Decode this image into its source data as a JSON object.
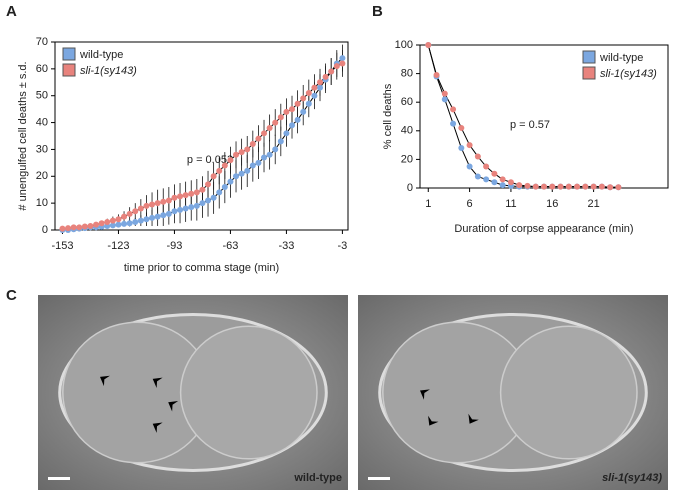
{
  "panels": {
    "letters": [
      "A",
      "B",
      "C"
    ]
  },
  "chart_data": [
    {
      "type": "line",
      "x_label": "time prior to comma stage (min)",
      "y_label": "# unengulfed cell deaths ± s.d.",
      "annotation": "p = 0.053",
      "legend": "upper left",
      "xlim": [
        -157,
        0
      ],
      "ylim": [
        0,
        70
      ],
      "xticks": [
        -153,
        -123,
        -93,
        -63,
        -33,
        -3
      ],
      "yticks": [
        0,
        10,
        20,
        30,
        40,
        50,
        60,
        70
      ],
      "x": [
        -153,
        -150,
        -147,
        -144,
        -141,
        -138,
        -135,
        -132,
        -129,
        -126,
        -123,
        -120,
        -117,
        -114,
        -111,
        -108,
        -105,
        -102,
        -99,
        -96,
        -93,
        -90,
        -87,
        -84,
        -81,
        -78,
        -75,
        -72,
        -69,
        -66,
        -63,
        -60,
        -57,
        -54,
        -51,
        -48,
        -45,
        -42,
        -39,
        -36,
        -33,
        -30,
        -27,
        -24,
        -21,
        -18,
        -15,
        -12,
        -9,
        -6,
        -3
      ],
      "series": [
        {
          "name": "wild-type",
          "color": "#7ba7e0",
          "values": [
            0,
            0,
            0.3,
            0.5,
            0.7,
            1,
            1,
            1.2,
            1.5,
            1.7,
            2,
            2.3,
            2.5,
            3,
            3.5,
            4,
            4.5,
            5,
            5.5,
            6,
            7,
            7.5,
            8,
            8.5,
            9,
            10,
            11,
            12,
            14,
            16,
            18,
            20,
            21,
            22,
            24,
            25,
            27,
            28,
            30,
            33,
            36,
            39,
            41,
            44,
            47,
            50,
            53,
            56,
            59,
            62,
            64
          ],
          "errors": [
            0.3,
            0.3,
            0.4,
            0.5,
            0.5,
            0.6,
            0.6,
            0.7,
            0.8,
            0.9,
            1,
            1,
            1.2,
            1.5,
            2,
            2.5,
            3,
            3.5,
            4,
            4,
            4.5,
            5,
            5,
            5,
            5.5,
            5.5,
            6,
            6,
            6,
            6,
            6,
            6,
            6,
            6,
            6,
            6,
            5.5,
            5.5,
            5.5,
            5.5,
            5,
            5,
            5,
            5,
            5,
            5,
            5,
            5,
            5,
            5,
            5
          ]
        },
        {
          "name": "sli-1(sy143)",
          "color": "#e8837d",
          "values": [
            0.5,
            0.7,
            1,
            1,
            1.3,
            1.5,
            2,
            2.5,
            3,
            3.5,
            4,
            5,
            6,
            7,
            8,
            9,
            9.5,
            10,
            10.5,
            11,
            12,
            12.5,
            13,
            13.5,
            14,
            15,
            17,
            20,
            22,
            24,
            26,
            28,
            29,
            30,
            32,
            34,
            36,
            38,
            40,
            42,
            44,
            45,
            47,
            49,
            51,
            53,
            55,
            57,
            59,
            61,
            62
          ],
          "errors": [
            0.4,
            0.5,
            0.6,
            0.6,
            0.7,
            0.8,
            0.9,
            1,
            1.2,
            1.5,
            1.8,
            2,
            2.5,
            3,
            3.5,
            4,
            4.5,
            5,
            5,
            5,
            5,
            5,
            5,
            5,
            5,
            5,
            5,
            5,
            5,
            5,
            5,
            5,
            5,
            5,
            5,
            5,
            5,
            5,
            5,
            5,
            5,
            5,
            5,
            5,
            5,
            5,
            5,
            5,
            5,
            5,
            5
          ]
        }
      ]
    },
    {
      "type": "line",
      "x_label": "Duration of corpse appearance (min)",
      "y_label": "% cell deaths",
      "annotation": "p = 0.57",
      "legend": "upper right",
      "xlim": [
        0,
        30
      ],
      "ylim": [
        0,
        100
      ],
      "xticks": [
        1,
        6,
        11,
        16,
        21
      ],
      "yticks": [
        0,
        20,
        40,
        60,
        80,
        100
      ],
      "x": [
        1,
        2,
        3,
        4,
        5,
        6,
        7,
        8,
        9,
        10,
        11,
        12,
        13,
        14,
        15,
        16,
        17,
        18,
        19,
        20,
        21,
        22,
        23,
        24
      ],
      "series": [
        {
          "name": "wild-type",
          "color": "#7ba7e0",
          "values": [
            100,
            78,
            62,
            45,
            28,
            15,
            8,
            6,
            4,
            2,
            1.5,
            1,
            1,
            1,
            1,
            1,
            1,
            1,
            1,
            1,
            1,
            1,
            0.5,
            0.5
          ]
        },
        {
          "name": "sli-1(sy143)",
          "color": "#e8837d",
          "values": [
            100,
            79,
            66,
            55,
            42,
            30,
            22,
            15,
            10,
            6,
            4,
            2,
            1.5,
            1,
            1,
            1,
            1,
            1,
            1,
            1,
            1,
            1,
            0.5,
            0.5
          ]
        }
      ]
    }
  ],
  "micrographs": [
    {
      "label": "wild-type"
    },
    {
      "label": "sli-1(sy143)"
    }
  ]
}
